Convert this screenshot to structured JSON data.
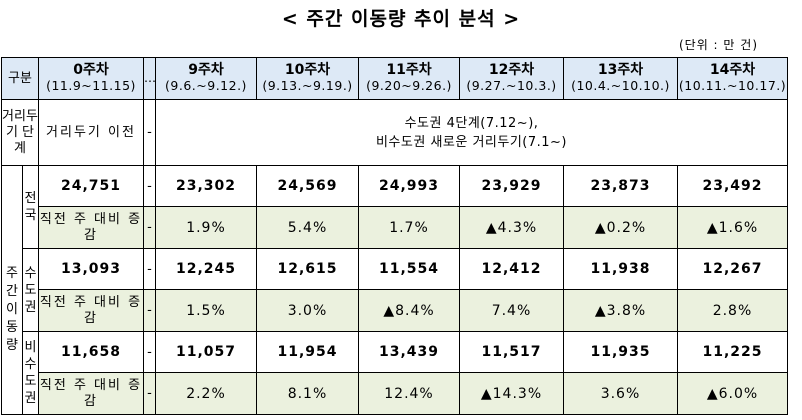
{
  "title": "< 주간 이동량 추이 분석 >",
  "unit": "(단위 : 만 건)",
  "header": {
    "gubun": "구분",
    "weeks": [
      {
        "label": "0주차",
        "date": "(11.9~11.15)"
      },
      {
        "label": "9주차",
        "date": "(9.6.~9.12.)"
      },
      {
        "label": "10주차",
        "date": "(9.13.~9.19.)"
      },
      {
        "label": "11주차",
        "date": "(9.20~9.26.)"
      },
      {
        "label": "12주차",
        "date": "(9.27.~10.3.)"
      },
      {
        "label": "13주차",
        "date": "(10.4.~10.10.)"
      },
      {
        "label": "14주차",
        "date": "(10.11.~10.17.)"
      }
    ],
    "ellipsis": "…"
  },
  "distancing": {
    "label": "거리두기 단계",
    "week0": "거리두기 이전",
    "dash": "-",
    "desc_line1": "수도권 4단계(7.12~),",
    "desc_line2": "비수도권 새로운 거리두기(7.1~)"
  },
  "weekly_label": "주간 이동량",
  "change_label": "직전 주 대비 증감",
  "regions": [
    {
      "name": "전국",
      "week0": "24,751",
      "dash": "-",
      "values": [
        "23,302",
        "24,569",
        "24,993",
        "23,929",
        "23,873",
        "23,492"
      ],
      "week0_change": "-",
      "changes": [
        "1.9%",
        "5.4%",
        "1.7%",
        "▲4.3%",
        "▲0.2%",
        "▲1.6%"
      ]
    },
    {
      "name": "수도권",
      "week0": "13,093",
      "dash": "-",
      "values": [
        "12,245",
        "12,615",
        "11,554",
        "12,412",
        "11,938",
        "12,267"
      ],
      "week0_change": "-",
      "changes": [
        "1.5%",
        "3.0%",
        "▲8.4%",
        "7.4%",
        "▲3.8%",
        "2.8%"
      ]
    },
    {
      "name": "비수도권",
      "week0": "11,658",
      "dash": "-",
      "values": [
        "11,057",
        "11,954",
        "13,439",
        "11,517",
        "11,935",
        "11,225"
      ],
      "week0_change": "-",
      "changes": [
        "2.2%",
        "8.1%",
        "12.4%",
        "▲14.3%",
        "3.6%",
        "▲6.0%"
      ]
    }
  ]
}
